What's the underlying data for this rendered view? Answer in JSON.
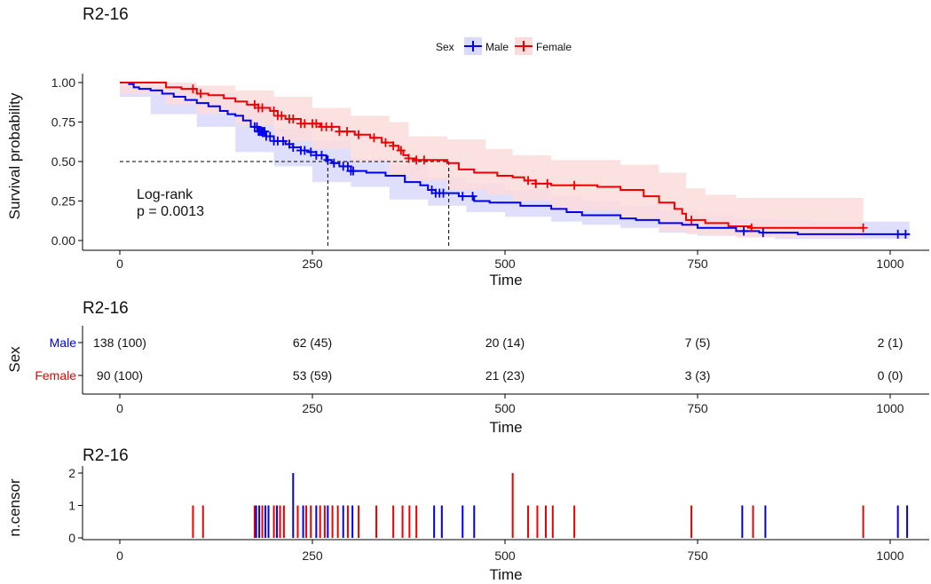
{
  "colors": {
    "male": "#0000ee",
    "female": "#ee0000",
    "male_ci": "#d9d9fb",
    "female_ci": "#fbdcdc"
  },
  "legend": {
    "title": "Sex",
    "items": [
      "Male",
      "Female"
    ]
  },
  "chart_data": [
    {
      "type": "line",
      "subtype": "kaplan-meier",
      "title": "R2-16",
      "xlabel": "Time",
      "ylabel": "Survival probability",
      "xlim": [
        -50,
        1050
      ],
      "ylim": [
        -0.04,
        1.06
      ],
      "xticks": [
        "0",
        "250",
        "500",
        "750",
        "1000"
      ],
      "xtick_values": [
        0,
        250,
        500,
        750,
        1000
      ],
      "yticks": [
        "0.00",
        "0.25",
        "0.50",
        "0.75",
        "1.00"
      ],
      "ytick_values": [
        0,
        0.25,
        0.5,
        0.75,
        1
      ],
      "annotation": [
        "Log-rank",
        "p = 0.0013"
      ],
      "median_survival": {
        "Male": 270,
        "Female": 427
      },
      "series": [
        {
          "name": "Male",
          "color": "#0000ee",
          "steps": [
            [
              0,
              1
            ],
            [
              12,
              0.99
            ],
            [
              18,
              0.97
            ],
            [
              25,
              0.96
            ],
            [
              40,
              0.95
            ],
            [
              55,
              0.93
            ],
            [
              70,
              0.91
            ],
            [
              85,
              0.89
            ],
            [
              100,
              0.87
            ],
            [
              115,
              0.85
            ],
            [
              130,
              0.82
            ],
            [
              140,
              0.8
            ],
            [
              150,
              0.79
            ],
            [
              160,
              0.76
            ],
            [
              170,
              0.72
            ],
            [
              180,
              0.69
            ],
            [
              190,
              0.66
            ],
            [
              200,
              0.63
            ],
            [
              215,
              0.61
            ],
            [
              225,
              0.59
            ],
            [
              235,
              0.57
            ],
            [
              245,
              0.56
            ],
            [
              255,
              0.54
            ],
            [
              268,
              0.51
            ],
            [
              275,
              0.49
            ],
            [
              285,
              0.47
            ],
            [
              300,
              0.44
            ],
            [
              320,
              0.43
            ],
            [
              345,
              0.41
            ],
            [
              370,
              0.37
            ],
            [
              390,
              0.35
            ],
            [
              400,
              0.32
            ],
            [
              410,
              0.3
            ],
            [
              440,
              0.28
            ],
            [
              460,
              0.25
            ],
            [
              480,
              0.24
            ],
            [
              520,
              0.22
            ],
            [
              560,
              0.2
            ],
            [
              580,
              0.18
            ],
            [
              600,
              0.16
            ],
            [
              650,
              0.14
            ],
            [
              670,
              0.13
            ],
            [
              700,
              0.11
            ],
            [
              730,
              0.1
            ],
            [
              750,
              0.08
            ],
            [
              800,
              0.06
            ],
            [
              830,
              0.05
            ],
            [
              880,
              0.04
            ],
            [
              1025,
              0.04
            ]
          ],
          "ci_upper": [
            [
              0,
              1
            ],
            [
              40,
              0.98
            ],
            [
              100,
              0.93
            ],
            [
              150,
              0.87
            ],
            [
              200,
              0.71
            ],
            [
              250,
              0.63
            ],
            [
              300,
              0.52
            ],
            [
              350,
              0.48
            ],
            [
              400,
              0.4
            ],
            [
              450,
              0.36
            ],
            [
              500,
              0.32
            ],
            [
              560,
              0.28
            ],
            [
              600,
              0.25
            ],
            [
              650,
              0.22
            ],
            [
              700,
              0.19
            ],
            [
              750,
              0.16
            ],
            [
              800,
              0.14
            ],
            [
              850,
              0.13
            ],
            [
              900,
              0.12
            ],
            [
              1025,
              0.12
            ]
          ],
          "ci_lower": [
            [
              0,
              1
            ],
            [
              40,
              0.91
            ],
            [
              100,
              0.8
            ],
            [
              150,
              0.72
            ],
            [
              200,
              0.56
            ],
            [
              250,
              0.47
            ],
            [
              300,
              0.37
            ],
            [
              350,
              0.34
            ],
            [
              400,
              0.26
            ],
            [
              450,
              0.22
            ],
            [
              500,
              0.18
            ],
            [
              560,
              0.15
            ],
            [
              600,
              0.12
            ],
            [
              650,
              0.1
            ],
            [
              700,
              0.08
            ],
            [
              750,
              0.05
            ],
            [
              800,
              0.03
            ],
            [
              850,
              0.02
            ],
            [
              900,
              0.01
            ],
            [
              1025,
              0.01
            ]
          ],
          "censor_times": [
            175,
            178,
            180,
            182,
            184,
            186,
            188,
            190,
            195,
            200,
            205,
            212,
            220,
            225,
            235,
            240,
            248,
            255,
            262,
            270,
            278,
            290,
            296,
            300,
            303,
            405,
            410,
            415,
            420,
            445,
            458,
            810,
            835,
            1010,
            1020
          ]
        },
        {
          "name": "Female",
          "color": "#ee0000",
          "steps": [
            [
              0,
              1
            ],
            [
              60,
              0.97
            ],
            [
              80,
              0.96
            ],
            [
              100,
              0.93
            ],
            [
              115,
              0.92
            ],
            [
              135,
              0.9
            ],
            [
              150,
              0.88
            ],
            [
              165,
              0.86
            ],
            [
              180,
              0.84
            ],
            [
              195,
              0.82
            ],
            [
              205,
              0.79
            ],
            [
              215,
              0.77
            ],
            [
              235,
              0.74
            ],
            [
              260,
              0.72
            ],
            [
              285,
              0.69
            ],
            [
              305,
              0.67
            ],
            [
              325,
              0.65
            ],
            [
              340,
              0.62
            ],
            [
              355,
              0.6
            ],
            [
              362,
              0.57
            ],
            [
              368,
              0.54
            ],
            [
              375,
              0.52
            ],
            [
              385,
              0.51
            ],
            [
              425,
              0.49
            ],
            [
              440,
              0.45
            ],
            [
              460,
              0.43
            ],
            [
              490,
              0.41
            ],
            [
              510,
              0.4
            ],
            [
              525,
              0.38
            ],
            [
              540,
              0.36
            ],
            [
              560,
              0.35
            ],
            [
              620,
              0.34
            ],
            [
              650,
              0.32
            ],
            [
              680,
              0.28
            ],
            [
              700,
              0.24
            ],
            [
              720,
              0.2
            ],
            [
              730,
              0.17
            ],
            [
              735,
              0.13
            ],
            [
              760,
              0.11
            ],
            [
              790,
              0.09
            ],
            [
              820,
              0.08
            ],
            [
              965,
              0.08
            ]
          ],
          "ci_upper": [
            [
              0,
              1
            ],
            [
              60,
              1
            ],
            [
              100,
              0.98
            ],
            [
              150,
              0.95
            ],
            [
              200,
              0.91
            ],
            [
              250,
              0.84
            ],
            [
              300,
              0.79
            ],
            [
              350,
              0.75
            ],
            [
              375,
              0.66
            ],
            [
              425,
              0.64
            ],
            [
              475,
              0.58
            ],
            [
              510,
              0.54
            ],
            [
              560,
              0.51
            ],
            [
              650,
              0.48
            ],
            [
              700,
              0.43
            ],
            [
              735,
              0.33
            ],
            [
              760,
              0.29
            ],
            [
              800,
              0.27
            ],
            [
              850,
              0.27
            ],
            [
              965,
              0.27
            ]
          ],
          "ci_lower": [
            [
              0,
              1
            ],
            [
              60,
              0.93
            ],
            [
              100,
              0.86
            ],
            [
              150,
              0.8
            ],
            [
              200,
              0.73
            ],
            [
              250,
              0.63
            ],
            [
              300,
              0.58
            ],
            [
              350,
              0.5
            ],
            [
              375,
              0.41
            ],
            [
              425,
              0.38
            ],
            [
              475,
              0.32
            ],
            [
              510,
              0.29
            ],
            [
              560,
              0.25
            ],
            [
              650,
              0.19
            ],
            [
              700,
              0.13
            ],
            [
              735,
              0.06
            ],
            [
              760,
              0.04
            ],
            [
              800,
              0.03
            ],
            [
              850,
              0.02
            ],
            [
              965,
              0.02
            ]
          ],
          "censor_times": [
            95,
            105,
            175,
            180,
            185,
            200,
            205,
            210,
            220,
            225,
            235,
            240,
            250,
            255,
            262,
            268,
            275,
            285,
            295,
            310,
            330,
            345,
            355,
            365,
            375,
            385,
            395,
            530,
            540,
            555,
            590,
            742,
            820,
            965
          ]
        }
      ]
    },
    {
      "type": "table",
      "title": "R2-16",
      "xlabel": "Time",
      "ylabel": "Sex",
      "xticks": [
        "0",
        "250",
        "500",
        "750",
        "1000"
      ],
      "rows": [
        {
          "name": "Male",
          "values": [
            "138 (100)",
            "62 (45)",
            "20 (14)",
            "7 (5)",
            "2 (1)"
          ]
        },
        {
          "name": "Female",
          "values": [
            "90 (100)",
            "53 (59)",
            "21 (23)",
            "3 (3)",
            "0 (0)"
          ]
        }
      ]
    },
    {
      "type": "bar",
      "subtype": "censor-events",
      "title": "R2-16",
      "xlabel": "Time",
      "ylabel": "n.censor",
      "ylim": [
        0,
        2
      ],
      "xticks": [
        "0",
        "250",
        "500",
        "750",
        "1000"
      ],
      "yticks": [
        "0",
        "1",
        "2"
      ],
      "bars": [
        {
          "time": 95,
          "value": 1,
          "group": "Female"
        },
        {
          "time": 108,
          "value": 1,
          "group": "Female"
        },
        {
          "time": 175,
          "value": 1,
          "group": "Female"
        },
        {
          "time": 177,
          "value": 1,
          "group": "Male"
        },
        {
          "time": 181,
          "value": 1,
          "group": "Male"
        },
        {
          "time": 185,
          "value": 1,
          "group": "Female"
        },
        {
          "time": 189,
          "value": 1,
          "group": "Male"
        },
        {
          "time": 193,
          "value": 1,
          "group": "Male"
        },
        {
          "time": 200,
          "value": 1,
          "group": "Female"
        },
        {
          "time": 204,
          "value": 1,
          "group": "Male"
        },
        {
          "time": 208,
          "value": 1,
          "group": "Female"
        },
        {
          "time": 213,
          "value": 1,
          "group": "Female"
        },
        {
          "time": 225,
          "value": 2,
          "group": "Male"
        },
        {
          "time": 231,
          "value": 1,
          "group": "Female"
        },
        {
          "time": 238,
          "value": 1,
          "group": "Male"
        },
        {
          "time": 242,
          "value": 1,
          "group": "Female"
        },
        {
          "time": 248,
          "value": 1,
          "group": "Female"
        },
        {
          "time": 255,
          "value": 1,
          "group": "Male"
        },
        {
          "time": 260,
          "value": 1,
          "group": "Female"
        },
        {
          "time": 266,
          "value": 1,
          "group": "Female"
        },
        {
          "time": 270,
          "value": 1,
          "group": "Male"
        },
        {
          "time": 276,
          "value": 1,
          "group": "Female"
        },
        {
          "time": 283,
          "value": 1,
          "group": "Female"
        },
        {
          "time": 290,
          "value": 1,
          "group": "Male"
        },
        {
          "time": 296,
          "value": 1,
          "group": "Female"
        },
        {
          "time": 302,
          "value": 1,
          "group": "Male"
        },
        {
          "time": 310,
          "value": 1,
          "group": "Female"
        },
        {
          "time": 333,
          "value": 1,
          "group": "Female"
        },
        {
          "time": 355,
          "value": 1,
          "group": "Female"
        },
        {
          "time": 367,
          "value": 1,
          "group": "Female"
        },
        {
          "time": 376,
          "value": 1,
          "group": "Female"
        },
        {
          "time": 385,
          "value": 1,
          "group": "Female"
        },
        {
          "time": 408,
          "value": 1,
          "group": "Male"
        },
        {
          "time": 418,
          "value": 1,
          "group": "Male"
        },
        {
          "time": 445,
          "value": 1,
          "group": "Male"
        },
        {
          "time": 460,
          "value": 1,
          "group": "Male"
        },
        {
          "time": 510,
          "value": 2,
          "group": "Female"
        },
        {
          "time": 530,
          "value": 1,
          "group": "Female"
        },
        {
          "time": 542,
          "value": 1,
          "group": "Female"
        },
        {
          "time": 553,
          "value": 1,
          "group": "Female"
        },
        {
          "time": 562,
          "value": 1,
          "group": "Female"
        },
        {
          "time": 590,
          "value": 1,
          "group": "Female"
        },
        {
          "time": 742,
          "value": 1,
          "group": "Female"
        },
        {
          "time": 808,
          "value": 1,
          "group": "Male"
        },
        {
          "time": 822,
          "value": 1,
          "group": "Female"
        },
        {
          "time": 838,
          "value": 1,
          "group": "Male"
        },
        {
          "time": 965,
          "value": 1,
          "group": "Female"
        },
        {
          "time": 1010,
          "value": 1,
          "group": "Male"
        },
        {
          "time": 1022,
          "value": 1,
          "group": "Male"
        }
      ]
    }
  ]
}
